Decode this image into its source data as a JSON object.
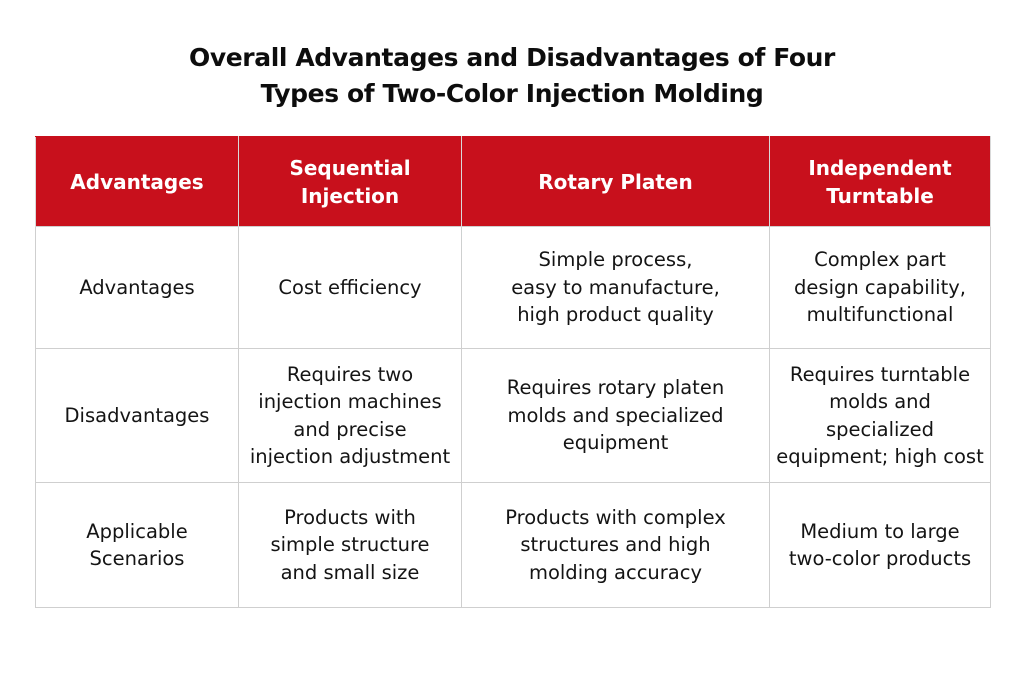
{
  "title": {
    "line1": "Overall Advantages and Disadvantages of Four",
    "line2": "Types of Two-Color Injection Molding"
  },
  "table": {
    "headers": [
      {
        "lines": [
          "Advantages"
        ]
      },
      {
        "lines": [
          "Sequential",
          "Injection"
        ]
      },
      {
        "lines": [
          "Rotary Platen"
        ]
      },
      {
        "lines": [
          "Independent",
          "Turntable"
        ]
      }
    ],
    "rows": [
      {
        "label": [
          "Advantages"
        ],
        "sequential": [
          "Cost efficiency"
        ],
        "rotary": [
          "Simple process,",
          "easy to manufacture,",
          "high product quality"
        ],
        "turntable": [
          "Complex part",
          "design capability,",
          "multifunctional"
        ]
      },
      {
        "label": [
          "Disadvantages"
        ],
        "sequential": [
          "Requires two",
          "injection machines",
          "and precise",
          "injection adjustment"
        ],
        "rotary": [
          "Requires rotary platen",
          "molds and specialized",
          "equipment"
        ],
        "turntable": [
          "Requires turntable",
          "molds and",
          "specialized",
          "equipment; high cost"
        ]
      },
      {
        "label": [
          "Applicable",
          "Scenarios"
        ],
        "sequential": [
          "Products with",
          "simple structure",
          "and small size"
        ],
        "rotary": [
          "Products with complex",
          "structures and high",
          "molding accuracy"
        ],
        "turntable": [
          "Medium to large",
          "two-color products"
        ]
      }
    ]
  },
  "colors": {
    "header_bg": "#c8101c",
    "header_text": "#ffffff",
    "grid_line": "#cfcfcf"
  }
}
